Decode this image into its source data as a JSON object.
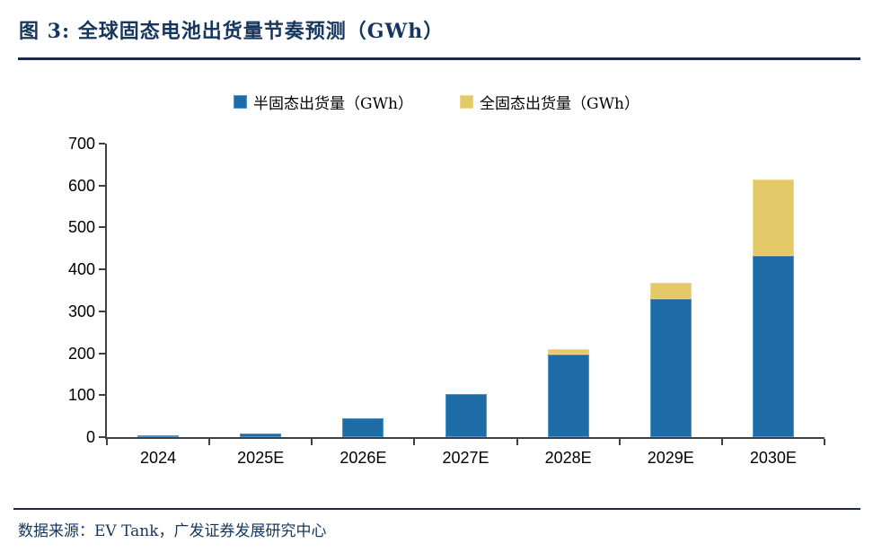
{
  "figure": {
    "title": "图 3: 全球固态电池出货量节奏预测（GWh）",
    "source": "数据来源：EV Tank，广发证券发展研究中心"
  },
  "colors": {
    "title_navy": "#16365d",
    "rule_navy": "#1b2a4a",
    "axis_gray": "#404040",
    "semi_solid_blue": "#1e6ca8",
    "semi_solid_blue_border": "#4f94cb",
    "full_solid_yellow": "#e3c967",
    "full_solid_yellow_border": "#edd98e"
  },
  "chart_data": {
    "type": "bar",
    "stacked": true,
    "title": "全球固态电池出货量节奏预测（GWh）",
    "categories": [
      "2024",
      "2025E",
      "2026E",
      "2027E",
      "2028E",
      "2029E",
      "2030E"
    ],
    "series": [
      {
        "name": "半固态出货量（GWh）",
        "color": "#1e6ca8",
        "border": "#4f94cb",
        "values": [
          5,
          9,
          45,
          102,
          196,
          330,
          433
        ]
      },
      {
        "name": "全固态出货量（GWh）",
        "color": "#e3c967",
        "border": "#edd98e",
        "values": [
          0,
          0,
          0,
          0,
          14,
          38,
          181
        ]
      }
    ],
    "xlabel": "",
    "ylabel": "",
    "ylim": [
      0,
      700
    ],
    "yticks": [
      0,
      100,
      200,
      300,
      400,
      500,
      600,
      700
    ],
    "grid": false,
    "legend_position": "top-center"
  }
}
